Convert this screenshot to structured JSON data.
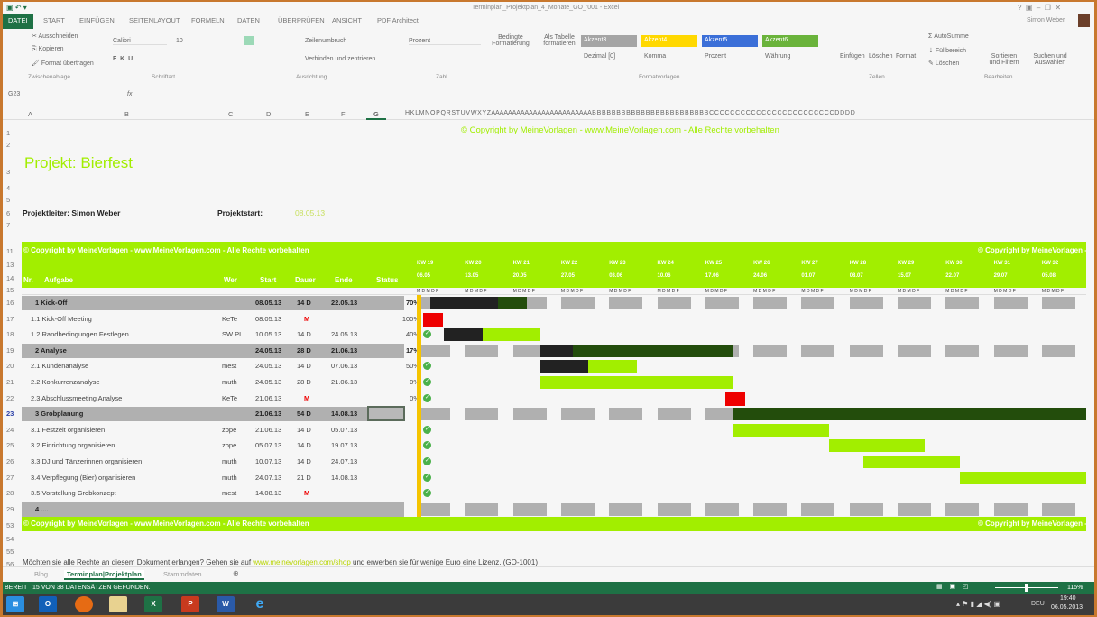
{
  "window": {
    "title": "Terminplan_Projektplan_4_Monate_GO_'001 - Excel",
    "user": "Simon Weber"
  },
  "ribbon_tabs": [
    "DATEI",
    "START",
    "EINFÜGEN",
    "SEITENLAYOUT",
    "FORMELN",
    "DATEN",
    "ÜBERPRÜFEN",
    "ANSICHT",
    "PDF Architect"
  ],
  "ribbon": {
    "cut": "Ausschneiden",
    "copy": "Kopieren",
    "format_painter": "Format übertragen",
    "font": "Calibri",
    "size": "10",
    "wrap": "Zeilenumbruch",
    "merge": "Verbinden und zentrieren",
    "number_format": "Prozent",
    "cond_format": "Bedingte Formatierung",
    "as_table": "Als Tabelle formatieren",
    "insert": "Einfügen",
    "delete": "Löschen",
    "format": "Format",
    "autosum": "AutoSumme",
    "fill": "Füllbereich",
    "clear": "Löschen",
    "sort": "Sortieren und Filtern",
    "find": "Suchen und Auswählen",
    "styles": [
      {
        "label": "Akzent3",
        "color": "#a5a5a5"
      },
      {
        "label": "Akzent4",
        "color": "#ffd800"
      },
      {
        "label": "Akzent5",
        "color": "#3b6fd8"
      },
      {
        "label": "Akzent6",
        "color": "#6ab33b"
      }
    ],
    "styles2": [
      "Dezimal [0]",
      "Komma",
      "Prozent",
      "Währung"
    ],
    "groups": [
      "Zwischenablage",
      "Schriftart",
      "Ausrichtung",
      "Zahl",
      "Formatvorlagen",
      "Zellen",
      "Bearbeiten"
    ]
  },
  "formula": {
    "namebox": "G23",
    "fx": "fx"
  },
  "columns": [
    "A",
    "B",
    "C",
    "D",
    "E",
    "F",
    "G",
    "H K L M N O P Q R S T U V W X Y Z A A A A A A A A A A A A A A A A A A A A A A A A B B B B B B B B B B B B B B B B B B B B B B B B C C C C C C C C C C C C C C C C C C C C C C C C D D D D"
  ],
  "copyright": "© Copyright by MeineVorlagen - www.MeineVorlagen.com - Alle Rechte vorbehalten",
  "project": {
    "title": "Projekt: Bierfest",
    "lead_label": "Projektleiter: Simon Weber",
    "start_label": "Projektstart:",
    "start": "08.05.13"
  },
  "headers": {
    "nr": "Nr.",
    "task": "Aufgabe",
    "who": "Wer",
    "start": "Start",
    "dur": "Dauer",
    "end": "Ende",
    "status": "Status"
  },
  "weeks": [
    {
      "kw": "KW 19",
      "d": "06.05"
    },
    {
      "kw": "KW 20",
      "d": "13.05"
    },
    {
      "kw": "KW 21",
      "d": "20.05"
    },
    {
      "kw": "KW 22",
      "d": "27.05"
    },
    {
      "kw": "KW 23",
      "d": "03.06"
    },
    {
      "kw": "KW 24",
      "d": "10.06"
    },
    {
      "kw": "KW 25",
      "d": "17.06"
    },
    {
      "kw": "KW 26",
      "d": "24.06"
    },
    {
      "kw": "KW 27",
      "d": "01.07"
    },
    {
      "kw": "KW 28",
      "d": "08.07"
    },
    {
      "kw": "KW 29",
      "d": "15.07"
    },
    {
      "kw": "KW 30",
      "d": "22.07"
    },
    {
      "kw": "KW 31",
      "d": "29.07"
    },
    {
      "kw": "KW 32",
      "d": "05.08"
    }
  ],
  "weekdays": "M D M D F",
  "tasks": [
    {
      "row": "16",
      "name": "1 Kick-Off",
      "who": "",
      "start": "08.05.13",
      "dur": "14 D",
      "end": "22.05.13",
      "status": "70%",
      "progress": 0.7,
      "type": "summary"
    },
    {
      "row": "17",
      "name": "1.1 Kick-Off Meeting",
      "who": "KeTe",
      "start": "08.05.13",
      "dur": "M",
      "end": "",
      "status": "100%",
      "progress": 1,
      "type": "milestone"
    },
    {
      "row": "18",
      "name": "1.2 Randbedingungen Festlegen",
      "who": "SW PL",
      "start": "10.05.13",
      "dur": "14 D",
      "end": "24.05.13",
      "status": "40%",
      "progress": 0.4,
      "type": "task"
    },
    {
      "row": "19",
      "name": "2 Analyse",
      "who": "",
      "start": "24.05.13",
      "dur": "28 D",
      "end": "21.06.13",
      "status": "17%",
      "progress": 0.17,
      "type": "summary"
    },
    {
      "row": "20",
      "name": "2.1 Kundenanalyse",
      "who": "mest",
      "start": "24.05.13",
      "dur": "14 D",
      "end": "07.06.13",
      "status": "50%",
      "progress": 0.5,
      "type": "task"
    },
    {
      "row": "21",
      "name": "2.2 Konkurrenzanalyse",
      "who": "muth",
      "start": "24.05.13",
      "dur": "28 D",
      "end": "21.06.13",
      "status": "0%",
      "progress": 0,
      "type": "task"
    },
    {
      "row": "22",
      "name": "2.3 Abschlussmeeting Analyse",
      "who": "KeTe",
      "start": "21.06.13",
      "dur": "M",
      "end": "",
      "status": "0%",
      "progress": 0,
      "type": "milestone"
    },
    {
      "row": "23",
      "name": "3 Grobplanung",
      "who": "",
      "start": "21.06.13",
      "dur": "54 D",
      "end": "14.08.13",
      "status": "",
      "progress": 0,
      "type": "summary"
    },
    {
      "row": "24",
      "name": "3.1 Festzelt organisieren",
      "who": "zope",
      "start": "21.06.13",
      "dur": "14 D",
      "end": "05.07.13",
      "status": "",
      "progress": 0,
      "type": "task"
    },
    {
      "row": "25",
      "name": "3.2 Einrichtung organisieren",
      "who": "zope",
      "start": "05.07.13",
      "dur": "14 D",
      "end": "19.07.13",
      "status": "",
      "progress": 0,
      "type": "task"
    },
    {
      "row": "26",
      "name": "3.3 DJ und Tänzerinnen organisieren",
      "who": "muth",
      "start": "10.07.13",
      "dur": "14 D",
      "end": "24.07.13",
      "status": "",
      "progress": 0,
      "type": "task"
    },
    {
      "row": "27",
      "name": "3.4 Verpflegung (Bier) organisieren",
      "who": "muth",
      "start": "24.07.13",
      "dur": "21 D",
      "end": "14.08.13",
      "status": "",
      "progress": 0,
      "type": "task"
    },
    {
      "row": "28",
      "name": "3.5 Vorstellung Grobkonzept",
      "who": "mest",
      "start": "14.08.13",
      "dur": "M",
      "end": "",
      "status": "",
      "progress": 0,
      "type": "milestone"
    },
    {
      "row": "29",
      "name": "4 ....",
      "who": "",
      "start": "",
      "dur": "",
      "end": "",
      "status": "",
      "progress": 0,
      "type": "summary-empty"
    }
  ],
  "colors": {
    "lime": "#a2ee00",
    "dark": "#234d0c",
    "black": "#222222",
    "milestone": "#ee0000",
    "gray": "#b0b0b0",
    "today": "#f5c400"
  },
  "footer": {
    "pre": "Möchten sie alle Rechte an diesem Dokument erlangen? Gehen sie auf ",
    "link": "www.meinevorlagen.com/shop",
    "post": " und erwerben sie für wenige Euro eine Lizenz. (GO-1001)"
  },
  "sheets": [
    "Blog",
    "Terminplan|Projektplan",
    "Stammdaten"
  ],
  "statusbar": {
    "ready": "BEREIT",
    "found": "15 VON 38 DATENSÄTZEN GEFUNDEN.",
    "zoom": "115%"
  },
  "taskbar": {
    "lang": "DEU",
    "time": "19:40",
    "date": "06.05.2013"
  }
}
